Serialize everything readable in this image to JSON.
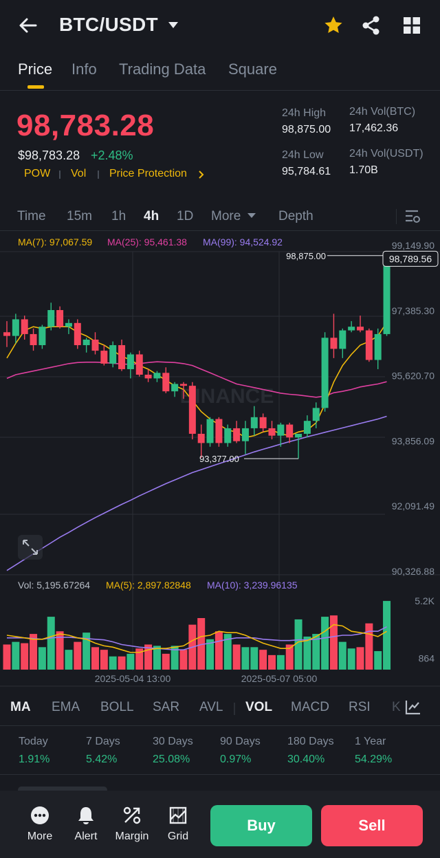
{
  "header": {
    "pair": "BTC/USDT",
    "icons": [
      "back-arrow-icon",
      "caret-down-icon",
      "star-icon",
      "share-icon",
      "grid-icon"
    ],
    "star_color": "#f0b90b"
  },
  "tabs": [
    {
      "label": "Price",
      "active": true
    },
    {
      "label": "Info",
      "active": false
    },
    {
      "label": "Trading Data",
      "active": false
    },
    {
      "label": "Square",
      "active": false
    }
  ],
  "price": {
    "last": "98,783.28",
    "usd": "$98,783.28",
    "change": "+2.48%",
    "tags": [
      "POW",
      "Vol",
      "Price Protection"
    ],
    "color_down": "#f6465d",
    "color_up": "#2ebd85"
  },
  "stats": {
    "high_label": "24h High",
    "high_value": "98,875.00",
    "low_label": "24h Low",
    "low_value": "95,784.61",
    "vol_btc_label": "24h Vol(BTC)",
    "vol_btc_value": "17,462.36",
    "vol_usdt_label": "24h Vol(USDT)",
    "vol_usdt_value": "1.70B"
  },
  "intervals": [
    {
      "label": "Time",
      "active": false
    },
    {
      "label": "15m",
      "active": false
    },
    {
      "label": "1h",
      "active": false
    },
    {
      "label": "4h",
      "active": true
    },
    {
      "label": "1D",
      "active": false
    },
    {
      "label": "More",
      "active": false
    },
    {
      "label": "Depth",
      "active": false
    }
  ],
  "ma_legend": {
    "ma7": "MA(7): 97,067.59",
    "ma25": "MA(25): 95,461.38",
    "ma99": "MA(99): 94,524.92"
  },
  "vol_legend": {
    "vol": "Vol: 5,195.67264",
    "ma5": "MA(5): 2,897.82848",
    "ma10": "MA(10): 3,239.96135"
  },
  "watermark": "BINANCE",
  "chart_data": {
    "type": "candlestick",
    "price_axis_ticks": [
      "99,149.90",
      "97,385.30",
      "95,620.70",
      "93,856.09",
      "92,091.49",
      "90,326.88"
    ],
    "price_axis_values": [
      99149.9,
      97385.3,
      95620.7,
      93856.09,
      92091.49,
      90326.88
    ],
    "ylim": [
      90326.88,
      99149.9
    ],
    "current_price_label": "98,789.56",
    "high_marker": "98,875.00",
    "high_marker_value": 98875.0,
    "low_marker": "93,377.00",
    "low_marker_value": 93377.0,
    "x_tick_labels": [
      "2025-05-04 13:00",
      "2025-05-07 05:00"
    ],
    "volume_axis_ticks": [
      "5.2K",
      "864"
    ],
    "volume_axis_values": [
      5200,
      864
    ],
    "candles": [
      {
        "o": 96800,
        "h": 97100,
        "l": 96400,
        "c": 96700
      },
      {
        "o": 96700,
        "h": 97300,
        "l": 96500,
        "c": 97150
      },
      {
        "o": 97150,
        "h": 97250,
        "l": 96600,
        "c": 96750
      },
      {
        "o": 96750,
        "h": 96900,
        "l": 96300,
        "c": 96450
      },
      {
        "o": 96450,
        "h": 97000,
        "l": 96350,
        "c": 96950
      },
      {
        "o": 96950,
        "h": 97600,
        "l": 96850,
        "c": 97400
      },
      {
        "o": 97400,
        "h": 97500,
        "l": 96900,
        "c": 96950
      },
      {
        "o": 96950,
        "h": 97150,
        "l": 96750,
        "c": 97050
      },
      {
        "o": 97050,
        "h": 97150,
        "l": 96350,
        "c": 96450
      },
      {
        "o": 96450,
        "h": 96650,
        "l": 96250,
        "c": 96600
      },
      {
        "o": 96600,
        "h": 96800,
        "l": 96200,
        "c": 96300
      },
      {
        "o": 96300,
        "h": 96450,
        "l": 95900,
        "c": 95950
      },
      {
        "o": 95950,
        "h": 96550,
        "l": 95850,
        "c": 96450
      },
      {
        "o": 96450,
        "h": 96600,
        "l": 95750,
        "c": 95800
      },
      {
        "o": 95800,
        "h": 96250,
        "l": 95550,
        "c": 96200
      },
      {
        "o": 96200,
        "h": 96300,
        "l": 95600,
        "c": 95650
      },
      {
        "o": 95650,
        "h": 95800,
        "l": 95450,
        "c": 95550
      },
      {
        "o": 95550,
        "h": 95750,
        "l": 95450,
        "c": 95700
      },
      {
        "o": 95700,
        "h": 95850,
        "l": 95150,
        "c": 95200
      },
      {
        "o": 95200,
        "h": 95450,
        "l": 95050,
        "c": 95400
      },
      {
        "o": 95400,
        "h": 95450,
        "l": 95000,
        "c": 95350
      },
      {
        "o": 95350,
        "h": 95450,
        "l": 93900,
        "c": 94050
      },
      {
        "o": 94050,
        "h": 94300,
        "l": 93400,
        "c": 93800
      },
      {
        "o": 93800,
        "h": 94500,
        "l": 93700,
        "c": 94450
      },
      {
        "o": 94450,
        "h": 94500,
        "l": 93700,
        "c": 93800
      },
      {
        "o": 93800,
        "h": 94300,
        "l": 93700,
        "c": 94200
      },
      {
        "o": 94200,
        "h": 94400,
        "l": 93800,
        "c": 93850
      },
      {
        "o": 93850,
        "h": 94400,
        "l": 93500,
        "c": 94200
      },
      {
        "o": 94200,
        "h": 94800,
        "l": 94000,
        "c": 94500
      },
      {
        "o": 94500,
        "h": 94600,
        "l": 94100,
        "c": 94200
      },
      {
        "o": 94200,
        "h": 94400,
        "l": 93900,
        "c": 94000
      },
      {
        "o": 94000,
        "h": 94350,
        "l": 93700,
        "c": 94300
      },
      {
        "o": 94300,
        "h": 94350,
        "l": 93800,
        "c": 93950
      },
      {
        "o": 93950,
        "h": 94050,
        "l": 93377,
        "c": 94050
      },
      {
        "o": 94050,
        "h": 94550,
        "l": 93950,
        "c": 94400
      },
      {
        "o": 94400,
        "h": 94900,
        "l": 94200,
        "c": 94750
      },
      {
        "o": 94750,
        "h": 96800,
        "l": 94650,
        "c": 96650
      },
      {
        "o": 96650,
        "h": 97300,
        "l": 96100,
        "c": 96350
      },
      {
        "o": 96350,
        "h": 96900,
        "l": 96100,
        "c": 96850
      },
      {
        "o": 96850,
        "h": 97100,
        "l": 96800,
        "c": 96950
      },
      {
        "o": 96950,
        "h": 97250,
        "l": 96800,
        "c": 96850
      },
      {
        "o": 96850,
        "h": 96900,
        "l": 96000,
        "c": 96050
      },
      {
        "o": 96050,
        "h": 96900,
        "l": 95800,
        "c": 96750
      },
      {
        "o": 96750,
        "h": 98875,
        "l": 96700,
        "c": 98783
      }
    ],
    "volumes": [
      1900,
      2100,
      2000,
      2700,
      1700,
      4000,
      2900,
      1500,
      2100,
      2800,
      1700,
      1500,
      1000,
      1000,
      1200,
      1600,
      1900,
      1800,
      1200,
      1800,
      1500,
      3400,
      3900,
      2300,
      2900,
      2700,
      1900,
      1700,
      1700,
      1500,
      1100,
      1100,
      1900,
      3800,
      2500,
      2700,
      4000,
      4100,
      2100,
      1600,
      1700,
      3500,
      1400,
      5195
    ],
    "ma7": [
      96100,
      96500,
      96850,
      96950,
      96900,
      96950,
      96950,
      96950,
      96800,
      96700,
      96550,
      96450,
      96300,
      96150,
      96050,
      95900,
      95800,
      95650,
      95500,
      95350,
      95250,
      94950,
      94650,
      94450,
      94300,
      94150,
      94100,
      93950,
      94000,
      94100,
      94150,
      94050,
      94000,
      94100,
      94150,
      94350,
      94850,
      95450,
      95900,
      96200,
      96450,
      96550,
      96700,
      97067.59
    ],
    "ma25": [
      95550,
      95650,
      95700,
      95750,
      95800,
      95850,
      95900,
      95950,
      95980,
      95990,
      95990,
      95980,
      95960,
      95940,
      95930,
      95950,
      95980,
      96000,
      95990,
      95980,
      95950,
      95900,
      95800,
      95700,
      95600,
      95500,
      95400,
      95350,
      95300,
      95250,
      95200,
      95150,
      95120,
      95100,
      95070,
      95040,
      95070,
      95160,
      95200,
      95250,
      95320,
      95360,
      95400,
      95461.38
    ],
    "ma99": [
      90350,
      90500,
      90650,
      90800,
      90950,
      91100,
      91250,
      91380,
      91520,
      91650,
      91780,
      91900,
      92020,
      92140,
      92250,
      92370,
      92480,
      92590,
      92700,
      92800,
      92900,
      93000,
      93080,
      93160,
      93240,
      93320,
      93400,
      93480,
      93560,
      93630,
      93700,
      93770,
      93840,
      93900,
      93970,
      94030,
      94090,
      94150,
      94210,
      94270,
      94330,
      94390,
      94450,
      94524.92
    ],
    "vol_ma5": [
      2600,
      2500,
      2400,
      2300,
      2300,
      2500,
      2700,
      2600,
      2400,
      2300,
      2000,
      1800,
      1700,
      1500,
      1300,
      1300,
      1500,
      1600,
      1600,
      1700,
      1800,
      2200,
      2500,
      2600,
      2900,
      2800,
      2800,
      2600,
      2300,
      2000,
      1800,
      1600,
      1600,
      2100,
      2200,
      2500,
      2900,
      3400,
      3300,
      2900,
      2800,
      2700,
      2500,
      2897.83
    ],
    "vol_ma10": [
      2400,
      2400,
      2400,
      2350,
      2300,
      2400,
      2450,
      2450,
      2400,
      2350,
      2300,
      2250,
      2100,
      1900,
      1800,
      1700,
      1650,
      1600,
      1550,
      1500,
      1500,
      1700,
      1900,
      2000,
      2150,
      2300,
      2400,
      2400,
      2400,
      2300,
      2250,
      2200,
      2200,
      2250,
      2250,
      2300,
      2400,
      2500,
      2600,
      2600,
      2700,
      2900,
      2900,
      3239.96
    ]
  },
  "indicators": [
    {
      "label": "MA",
      "active": true
    },
    {
      "label": "EMA",
      "active": false
    },
    {
      "label": "BOLL",
      "active": false
    },
    {
      "label": "SAR",
      "active": false
    },
    {
      "label": "AVL",
      "active": false
    },
    {
      "label": "VOL",
      "active": true
    },
    {
      "label": "MACD",
      "active": false
    },
    {
      "label": "RSI",
      "active": false
    },
    {
      "label": "K",
      "active": false
    }
  ],
  "performance": [
    {
      "label": "Today",
      "value": "1.91%"
    },
    {
      "label": "7 Days",
      "value": "5.42%"
    },
    {
      "label": "30 Days",
      "value": "25.08%"
    },
    {
      "label": "90 Days",
      "value": "0.97%"
    },
    {
      "label": "180 Days",
      "value": "30.40%"
    },
    {
      "label": "1 Year",
      "value": "54.29%"
    }
  ],
  "bottom": {
    "more": "More",
    "alert": "Alert",
    "margin": "Margin",
    "grid": "Grid",
    "buy": "Buy",
    "sell": "Sell"
  }
}
